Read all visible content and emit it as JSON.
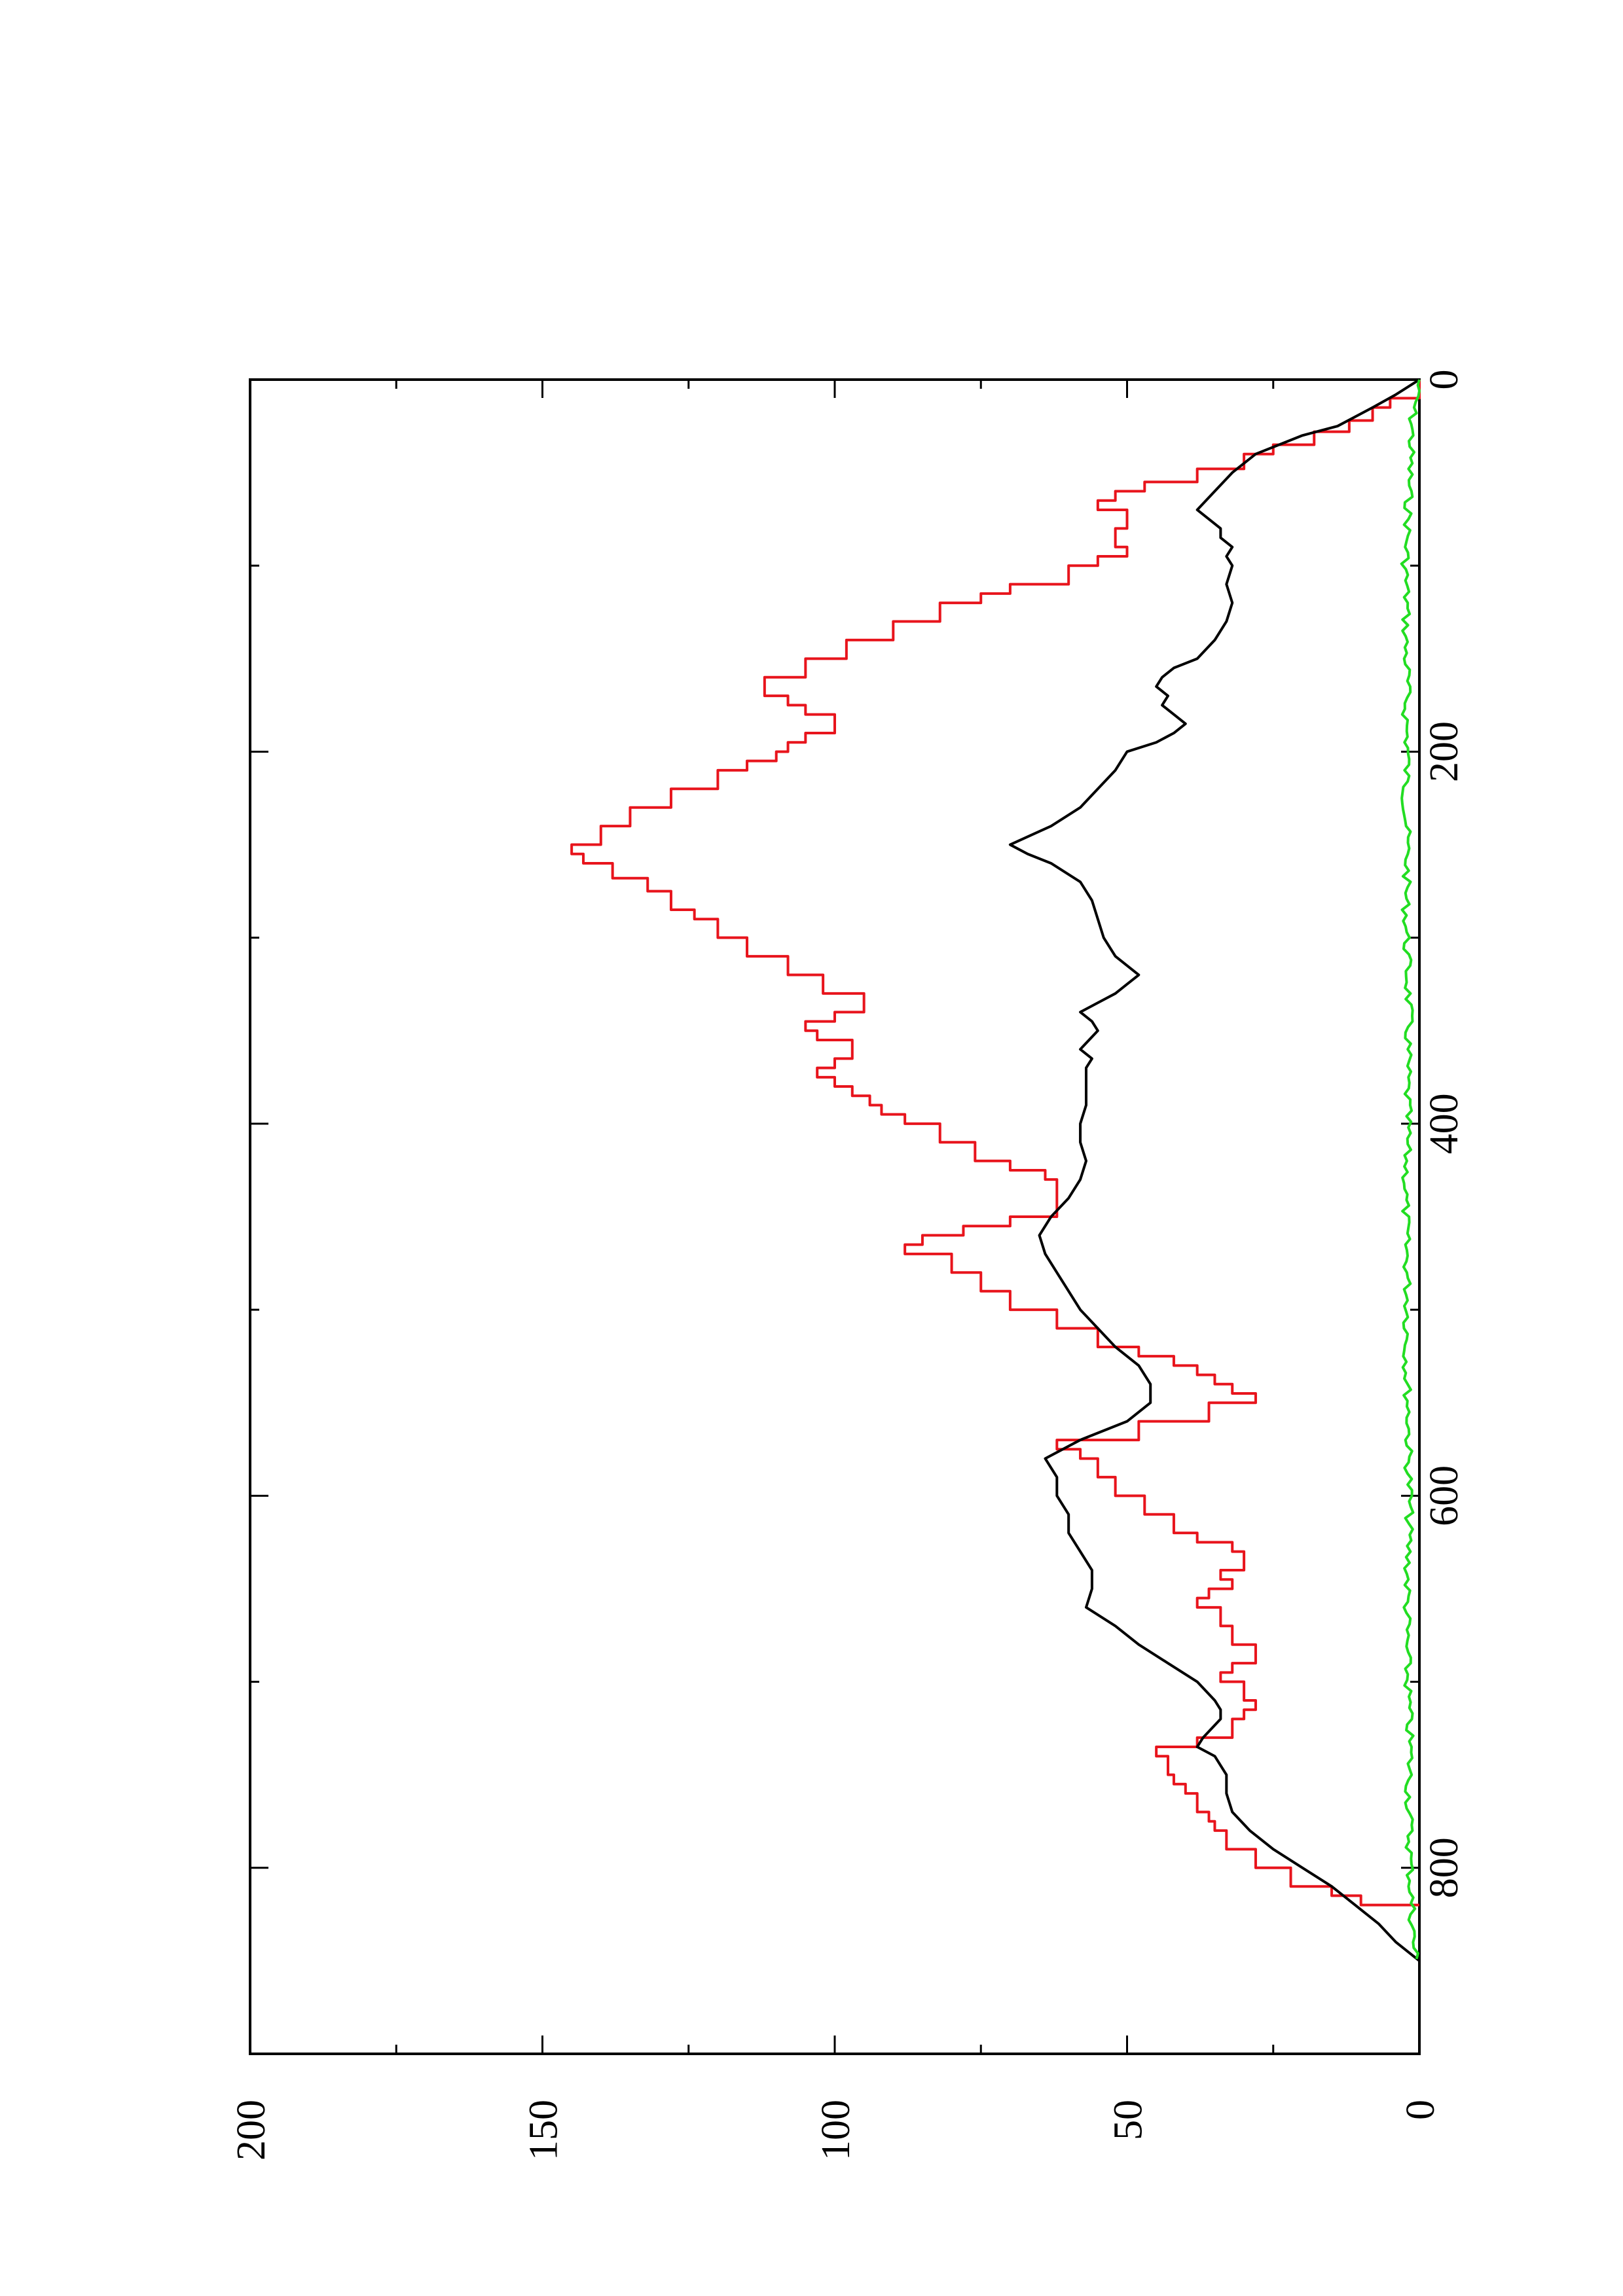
{
  "chart_data": {
    "type": "line",
    "orientation": "rotated 90° counter-clockwise",
    "title": "",
    "xlabel": "",
    "ylabel": "",
    "xlim": [
      0,
      900
    ],
    "ylim": [
      0,
      200
    ],
    "x_ticks": [
      0,
      200,
      400,
      600,
      800
    ],
    "y_ticks": [
      0,
      50,
      100,
      150,
      200
    ],
    "x_minor_ticks": [
      100,
      300,
      500,
      700
    ],
    "y_minor_ticks": [
      25,
      75,
      125,
      175
    ],
    "grid": false,
    "legend": "none",
    "series": [
      {
        "color": "#e8141c",
        "style": "staircase",
        "x": [
          0,
          10,
          15,
          22,
          28,
          35,
          40,
          48,
          55,
          60,
          65,
          68,
          70,
          75,
          80,
          85,
          90,
          95,
          100,
          110,
          115,
          120,
          130,
          140,
          150,
          160,
          170,
          175,
          180,
          185,
          190,
          195,
          200,
          205,
          210,
          220,
          230,
          240,
          250,
          255,
          260,
          268,
          275,
          285,
          290,
          300,
          310,
          320,
          330,
          340,
          345,
          350,
          355,
          365,
          370,
          375,
          380,
          385,
          390,
          395,
          400,
          410,
          420,
          425,
          430,
          440,
          450,
          455,
          460,
          465,
          470,
          480,
          490,
          500,
          510,
          520,
          525,
          530,
          535,
          540,
          545,
          550,
          560,
          570,
          575,
          580,
          590,
          600,
          610,
          620,
          625,
          630,
          640,
          645,
          650,
          655,
          660,
          670,
          680,
          685,
          690,
          695,
          700,
          705,
          710,
          715,
          720,
          730,
          735,
          740,
          750,
          755,
          760,
          770,
          775,
          780,
          790,
          800,
          810,
          815,
          820
        ],
        "y": [
          0,
          5,
          8,
          12,
          18,
          25,
          30,
          38,
          47,
          52,
          55,
          55,
          50,
          50,
          52,
          52,
          50,
          55,
          60,
          70,
          75,
          82,
          90,
          98,
          105,
          112,
          108,
          105,
          100,
          100,
          105,
          108,
          110,
          115,
          120,
          128,
          135,
          140,
          145,
          143,
          138,
          132,
          128,
          124,
          120,
          115,
          108,
          102,
          95,
          100,
          105,
          103,
          97,
          100,
          103,
          100,
          97,
          94,
          92,
          88,
          82,
          76,
          70,
          64,
          62,
          62,
          70,
          78,
          85,
          88,
          80,
          75,
          70,
          62,
          55,
          48,
          42,
          38,
          35,
          32,
          28,
          36,
          48,
          62,
          58,
          55,
          52,
          47,
          42,
          38,
          32,
          30,
          34,
          32,
          36,
          38,
          34,
          32,
          28,
          28,
          32,
          34,
          30,
          30,
          28,
          30,
          32,
          38,
          45,
          43,
          42,
          40,
          38,
          36,
          35,
          33,
          28,
          22,
          15,
          10,
          0
        ]
      },
      {
        "color": "#000000",
        "style": "line",
        "x": [
          0,
          8,
          15,
          25,
          30,
          35,
          40,
          50,
          60,
          70,
          75,
          80,
          85,
          90,
          95,
          100,
          110,
          120,
          130,
          140,
          150,
          155,
          160,
          165,
          170,
          175,
          180,
          185,
          190,
          195,
          200,
          210,
          220,
          230,
          240,
          250,
          255,
          260,
          270,
          280,
          290,
          300,
          310,
          315,
          320,
          325,
          330,
          335,
          340,
          345,
          350,
          360,
          365,
          370,
          380,
          390,
          400,
          410,
          420,
          430,
          440,
          450,
          460,
          470,
          480,
          490,
          500,
          510,
          520,
          530,
          540,
          550,
          560,
          570,
          580,
          590,
          600,
          610,
          620,
          630,
          640,
          650,
          660,
          670,
          680,
          690,
          700,
          710,
          715,
          720,
          730,
          735,
          740,
          750,
          760,
          770,
          780,
          790,
          800,
          810,
          820,
          830,
          840,
          845,
          850
        ],
        "y": [
          0,
          4,
          8,
          14,
          20,
          24,
          28,
          32,
          35,
          38,
          36,
          34,
          34,
          32,
          33,
          32,
          33,
          32,
          33,
          35,
          38,
          42,
          44,
          45,
          43,
          44,
          42,
          40,
          42,
          45,
          50,
          52,
          55,
          58,
          63,
          70,
          67,
          63,
          58,
          56,
          55,
          54,
          52,
          50,
          48,
          50,
          52,
          55,
          58,
          56,
          55,
          58,
          56,
          57,
          57,
          57,
          58,
          58,
          57,
          58,
          60,
          63,
          65,
          64,
          62,
          60,
          58,
          55,
          52,
          48,
          46,
          46,
          50,
          58,
          64,
          62,
          62,
          60,
          60,
          58,
          56,
          56,
          57,
          52,
          48,
          43,
          38,
          35,
          34,
          34,
          37,
          38,
          35,
          33,
          33,
          32,
          29,
          25,
          20,
          15,
          11,
          7,
          4,
          2,
          0
        ]
      },
      {
        "color": "#22dd22",
        "style": "noisy",
        "x": [
          0,
          20,
          40,
          60,
          80,
          100,
          120,
          140,
          160,
          180,
          200,
          220,
          240,
          260,
          280,
          300,
          320,
          340,
          360,
          380,
          400,
          420,
          440,
          460,
          480,
          500,
          520,
          540,
          560,
          580,
          600,
          620,
          640,
          660,
          680,
          700,
          720,
          740,
          760,
          780,
          800,
          820,
          840,
          850
        ],
        "y": [
          0,
          1.2,
          1.5,
          1.8,
          2.0,
          2.4,
          2.2,
          2.4,
          2.1,
          2.3,
          2.0,
          2.4,
          2.2,
          2.1,
          2.3,
          2.2,
          2.0,
          1.8,
          2.0,
          2.1,
          2.0,
          2.2,
          2.4,
          2.3,
          2.1,
          2.0,
          2.2,
          2.1,
          1.8,
          1.9,
          1.7,
          1.8,
          2.0,
          2.1,
          2.2,
          2.0,
          1.8,
          1.6,
          1.8,
          1.7,
          1.6,
          1.3,
          1.0,
          0.6
        ]
      }
    ]
  }
}
